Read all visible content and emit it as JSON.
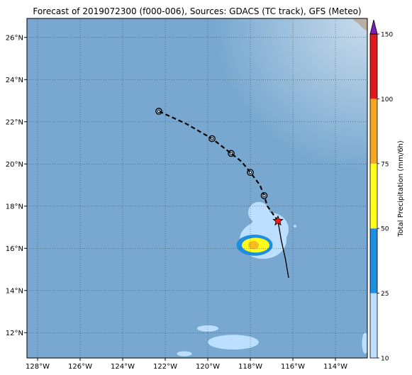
{
  "title": "Forecast of 2019072300 (f000-006), Sources: GDACS (TC track), GFS (Meteo)",
  "map": {
    "lon_range": [
      -128.5,
      -112.5
    ],
    "lat_range": [
      10.8,
      26.9
    ],
    "grid": true,
    "lon_ticks": [
      {
        "value": -128,
        "label": "128°W"
      },
      {
        "value": -126,
        "label": "126°W"
      },
      {
        "value": -124,
        "label": "124°W"
      },
      {
        "value": -122,
        "label": "122°W"
      },
      {
        "value": -120,
        "label": "120°W"
      },
      {
        "value": -118,
        "label": "118°W"
      },
      {
        "value": -116,
        "label": "116°W"
      },
      {
        "value": -114,
        "label": "114°W"
      }
    ],
    "lat_ticks": [
      {
        "value": 12,
        "label": "12°N"
      },
      {
        "value": 14,
        "label": "14°N"
      },
      {
        "value": 16,
        "label": "16°N"
      },
      {
        "value": 18,
        "label": "18°N"
      },
      {
        "value": 20,
        "label": "20°N"
      },
      {
        "value": 22,
        "label": "22°N"
      },
      {
        "value": 24,
        "label": "24°N"
      },
      {
        "value": 26,
        "label": "26°N"
      }
    ],
    "colors": {
      "ocean": "#78a8cf",
      "land": "#b8b0a4",
      "grid": "#2b3a48",
      "track": "#000000",
      "current_position": "#ff1a1a"
    }
  },
  "track": {
    "observed": [
      {
        "lon": -116.2,
        "lat": 14.6
      },
      {
        "lon": -116.35,
        "lat": 15.5
      },
      {
        "lon": -116.55,
        "lat": 16.4
      },
      {
        "lon": -116.7,
        "lat": 17.3
      }
    ],
    "forecast": [
      {
        "lon": -116.7,
        "lat": 17.3
      },
      {
        "lon": -117.2,
        "lat": 18.0
      },
      {
        "lon": -117.35,
        "lat": 18.5
      },
      {
        "lon": -117.55,
        "lat": 19.0
      },
      {
        "lon": -118.0,
        "lat": 19.6
      },
      {
        "lon": -118.4,
        "lat": 20.1
      },
      {
        "lon": -118.9,
        "lat": 20.5
      },
      {
        "lon": -119.8,
        "lat": 21.2
      },
      {
        "lon": -121.0,
        "lat": 21.9
      },
      {
        "lon": -122.3,
        "lat": 22.5
      }
    ],
    "forecast_points": [
      {
        "lon": -117.35,
        "lat": 18.5
      },
      {
        "lon": -118.0,
        "lat": 19.6
      },
      {
        "lon": -118.9,
        "lat": 20.5
      },
      {
        "lon": -119.8,
        "lat": 21.2
      },
      {
        "lon": -122.3,
        "lat": 22.5
      }
    ],
    "current": {
      "lon": -116.7,
      "lat": 17.3
    }
  },
  "precip": {
    "blobs": [
      {
        "level": 0,
        "lon": -117.4,
        "lat": 16.4,
        "rlon": 1.1,
        "rlat": 0.9
      },
      {
        "level": 0,
        "lon": -117.6,
        "lat": 17.7,
        "rlon": 0.5,
        "rlat": 0.5
      },
      {
        "level": 0,
        "lon": -117.1,
        "lat": 16.9,
        "rlon": 0.9,
        "rlat": 0.8
      },
      {
        "level": 1,
        "lon": -117.8,
        "lat": 16.15,
        "rlon": 0.85,
        "rlat": 0.5
      },
      {
        "level": 2,
        "lon": -117.75,
        "lat": 16.15,
        "rlon": 0.65,
        "rlat": 0.35
      },
      {
        "level": 3,
        "lon": -117.85,
        "lat": 16.15,
        "rlon": 0.25,
        "rlat": 0.2
      },
      {
        "level": 0,
        "lon": -118.8,
        "lat": 11.55,
        "rlon": 1.2,
        "rlat": 0.35
      },
      {
        "level": 0,
        "lon": -120.0,
        "lat": 12.2,
        "rlon": 0.5,
        "rlat": 0.15
      },
      {
        "level": 0,
        "lon": -121.1,
        "lat": 11.0,
        "rlon": 0.35,
        "rlat": 0.12
      },
      {
        "level": 0,
        "lon": -115.9,
        "lat": 17.05,
        "rlon": 0.07,
        "rlat": 0.06
      },
      {
        "level": 0,
        "lon": -112.6,
        "lat": 11.5,
        "rlon": 0.15,
        "rlat": 0.5
      }
    ]
  },
  "colorbar": {
    "label": "Total Precipitation (mm/6h)",
    "levels": [
      {
        "from": 10,
        "to": 25,
        "color": "#bcdfff"
      },
      {
        "from": 25,
        "to": 50,
        "color": "#1e8ee0"
      },
      {
        "from": 50,
        "to": 75,
        "color": "#ffff1a"
      },
      {
        "from": 75,
        "to": 100,
        "color": "#f5a623"
      },
      {
        "from": 100,
        "to": 150,
        "color": "#e01a1a"
      }
    ],
    "extend_color": "#7a1fb8",
    "ticks": [
      "10",
      "25",
      "50",
      "75",
      "100",
      "150"
    ]
  }
}
